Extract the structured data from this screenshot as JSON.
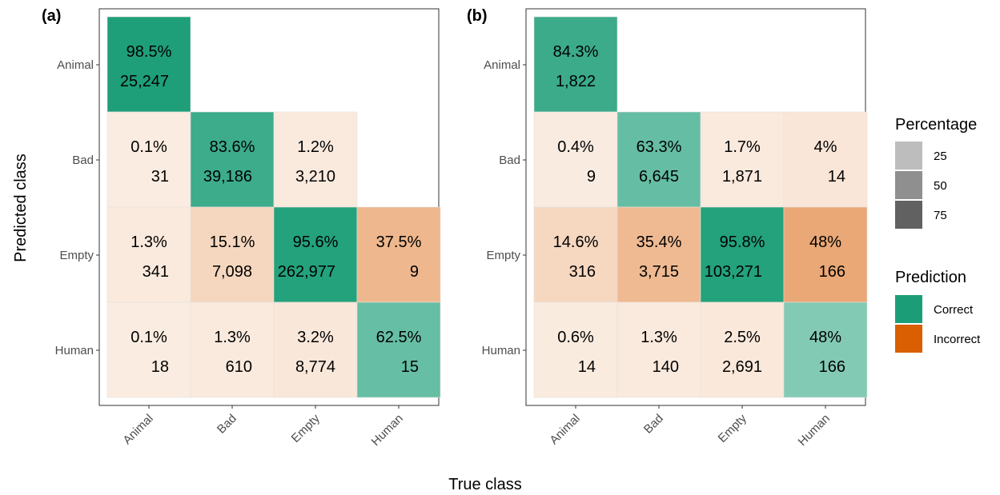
{
  "chart_data": [
    {
      "type": "heatmap",
      "panel_label": "(a)",
      "x_categories": [
        "Animal",
        "Bad",
        "Empty",
        "Human"
      ],
      "y_categories": [
        "Animal",
        "Bad",
        "Empty",
        "Human"
      ],
      "cells": [
        {
          "true": "Animal",
          "pred": "Animal",
          "pct": 98.5,
          "pct_label": "98.5%",
          "count": "25,247"
        },
        {
          "true": "Animal",
          "pred": "Bad",
          "pct": 0.1,
          "pct_label": "0.1%",
          "count": "31"
        },
        {
          "true": "Bad",
          "pred": "Bad",
          "pct": 83.6,
          "pct_label": "83.6%",
          "count": "39,186"
        },
        {
          "true": "Empty",
          "pred": "Bad",
          "pct": 1.2,
          "pct_label": "1.2%",
          "count": "3,210"
        },
        {
          "true": "Animal",
          "pred": "Empty",
          "pct": 1.3,
          "pct_label": "1.3%",
          "count": "341"
        },
        {
          "true": "Bad",
          "pred": "Empty",
          "pct": 15.1,
          "pct_label": "15.1%",
          "count": "7,098"
        },
        {
          "true": "Empty",
          "pred": "Empty",
          "pct": 95.6,
          "pct_label": "95.6%",
          "count": "262,977"
        },
        {
          "true": "Human",
          "pred": "Empty",
          "pct": 37.5,
          "pct_label": "37.5%",
          "count": "9"
        },
        {
          "true": "Animal",
          "pred": "Human",
          "pct": 0.1,
          "pct_label": "0.1%",
          "count": "18"
        },
        {
          "true": "Bad",
          "pred": "Human",
          "pct": 1.3,
          "pct_label": "1.3%",
          "count": "610"
        },
        {
          "true": "Empty",
          "pred": "Human",
          "pct": 3.2,
          "pct_label": "3.2%",
          "count": "8,774"
        },
        {
          "true": "Human",
          "pred": "Human",
          "pct": 62.5,
          "pct_label": "62.5%",
          "count": "15"
        }
      ]
    },
    {
      "type": "heatmap",
      "panel_label": "(b)",
      "x_categories": [
        "Animal",
        "Bad",
        "Empty",
        "Human"
      ],
      "y_categories": [
        "Animal",
        "Bad",
        "Empty",
        "Human"
      ],
      "cells": [
        {
          "true": "Animal",
          "pred": "Animal",
          "pct": 84.3,
          "pct_label": "84.3%",
          "count": "1,822"
        },
        {
          "true": "Animal",
          "pred": "Bad",
          "pct": 0.4,
          "pct_label": "0.4%",
          "count": "9"
        },
        {
          "true": "Bad",
          "pred": "Bad",
          "pct": 63.3,
          "pct_label": "63.3%",
          "count": "6,645"
        },
        {
          "true": "Empty",
          "pred": "Bad",
          "pct": 1.7,
          "pct_label": "1.7%",
          "count": "1,871"
        },
        {
          "true": "Human",
          "pred": "Bad",
          "pct": 4,
          "pct_label": "4%",
          "count": "14"
        },
        {
          "true": "Animal",
          "pred": "Empty",
          "pct": 14.6,
          "pct_label": "14.6%",
          "count": "316"
        },
        {
          "true": "Bad",
          "pred": "Empty",
          "pct": 35.4,
          "pct_label": "35.4%",
          "count": "3,715"
        },
        {
          "true": "Empty",
          "pred": "Empty",
          "pct": 95.8,
          "pct_label": "95.8%",
          "count": "103,271"
        },
        {
          "true": "Human",
          "pred": "Empty",
          "pct": 48,
          "pct_label": "48%",
          "count": "166"
        },
        {
          "true": "Animal",
          "pred": "Human",
          "pct": 0.6,
          "pct_label": "0.6%",
          "count": "14"
        },
        {
          "true": "Bad",
          "pred": "Human",
          "pct": 1.3,
          "pct_label": "1.3%",
          "count": "140"
        },
        {
          "true": "Empty",
          "pred": "Human",
          "pct": 2.5,
          "pct_label": "2.5%",
          "count": "2,691"
        },
        {
          "true": "Human",
          "pred": "Human",
          "pct": 48,
          "pct_label": "48%",
          "count": "166"
        }
      ]
    }
  ],
  "axes": {
    "x_title": "True class",
    "y_title": "Predicted class"
  },
  "legend_percentage": {
    "title": "Percentage",
    "entries": [
      {
        "label": "25",
        "value": 25,
        "color": "#bdbdbd"
      },
      {
        "label": "50",
        "value": 50,
        "color": "#8f8f8f"
      },
      {
        "label": "75",
        "value": 75,
        "color": "#616161"
      }
    ]
  },
  "legend_prediction": {
    "title": "Prediction",
    "entries": [
      {
        "label": "Correct",
        "color": "#1b9e77"
      },
      {
        "label": "Incorrect",
        "color": "#d95f02"
      }
    ]
  }
}
